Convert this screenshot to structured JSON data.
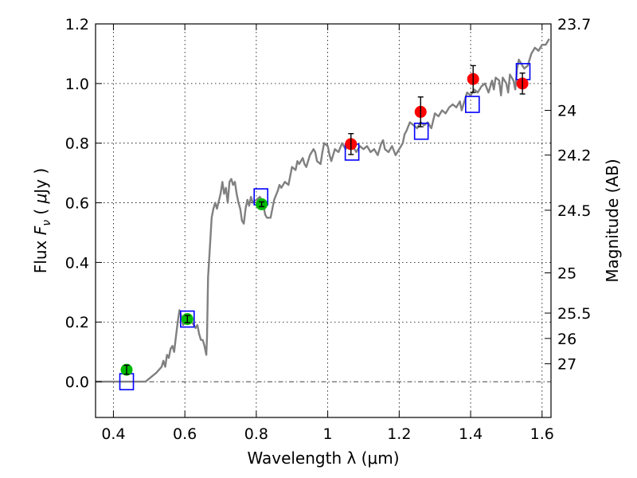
{
  "chart_data": {
    "type": "scatter",
    "xlabel": "Wavelength  λ (μm)",
    "ylabel": "Flux  F_ν  ( μJy )",
    "ylabel_right": "Magnitude (AB)",
    "xlim": [
      0.35,
      1.625
    ],
    "ylim": [
      -0.12,
      1.2
    ],
    "grid": true,
    "x_ticks": [
      0.4,
      0.6,
      0.8,
      1.0,
      1.2,
      1.4,
      1.6
    ],
    "x_tick_labels": [
      "0.4",
      "0.6",
      "0.8",
      "1",
      "1.2",
      "1.4",
      "1.6"
    ],
    "y_ticks": [
      0.0,
      0.2,
      0.4,
      0.6,
      0.8,
      1.0,
      1.2
    ],
    "y_tick_labels": [
      "0.0",
      "0.2",
      "0.4",
      "0.6",
      "0.8",
      "1.0",
      "1.2"
    ],
    "right_ticks": [
      {
        "label": "23.7",
        "flux": 1.2
      },
      {
        "label": "24",
        "flux": 0.91
      },
      {
        "label": "24.2",
        "flux": 0.76
      },
      {
        "label": "24.5",
        "flux": 0.575
      },
      {
        "label": "25",
        "flux": 0.365
      },
      {
        "label": "25.5",
        "flux": 0.23
      },
      {
        "label": "26",
        "flux": 0.145
      },
      {
        "label": "27",
        "flux": 0.06
      }
    ],
    "series": [
      {
        "kind": "line",
        "color": "#808080",
        "points": [
          [
            0.35,
            0.0
          ],
          [
            0.49,
            0.0
          ],
          [
            0.5,
            0.01
          ],
          [
            0.52,
            0.03
          ],
          [
            0.535,
            0.05
          ],
          [
            0.54,
            0.07
          ],
          [
            0.545,
            0.05
          ],
          [
            0.55,
            0.09
          ],
          [
            0.555,
            0.08
          ],
          [
            0.56,
            0.11
          ],
          [
            0.565,
            0.12
          ],
          [
            0.57,
            0.1
          ],
          [
            0.575,
            0.15
          ],
          [
            0.58,
            0.2
          ],
          [
            0.585,
            0.24
          ],
          [
            0.59,
            0.22
          ],
          [
            0.595,
            0.19
          ],
          [
            0.6,
            0.2
          ],
          [
            0.61,
            0.22
          ],
          [
            0.62,
            0.2
          ],
          [
            0.63,
            0.18
          ],
          [
            0.635,
            0.19
          ],
          [
            0.64,
            0.16
          ],
          [
            0.645,
            0.14
          ],
          [
            0.65,
            0.14
          ],
          [
            0.655,
            0.12
          ],
          [
            0.66,
            0.09
          ],
          [
            0.662,
            0.15
          ],
          [
            0.665,
            0.35
          ],
          [
            0.67,
            0.45
          ],
          [
            0.675,
            0.55
          ],
          [
            0.68,
            0.58
          ],
          [
            0.685,
            0.6
          ],
          [
            0.69,
            0.58
          ],
          [
            0.7,
            0.63
          ],
          [
            0.705,
            0.67
          ],
          [
            0.71,
            0.63
          ],
          [
            0.715,
            0.65
          ],
          [
            0.72,
            0.6
          ],
          [
            0.725,
            0.67
          ],
          [
            0.73,
            0.68
          ],
          [
            0.735,
            0.66
          ],
          [
            0.74,
            0.67
          ],
          [
            0.745,
            0.63
          ],
          [
            0.75,
            0.6
          ],
          [
            0.755,
            0.58
          ],
          [
            0.76,
            0.54
          ],
          [
            0.765,
            0.53
          ],
          [
            0.77,
            0.58
          ],
          [
            0.775,
            0.61
          ],
          [
            0.78,
            0.59
          ],
          [
            0.785,
            0.62
          ],
          [
            0.79,
            0.6
          ],
          [
            0.8,
            0.61
          ],
          [
            0.81,
            0.62
          ],
          [
            0.815,
            0.61
          ],
          [
            0.82,
            0.59
          ],
          [
            0.825,
            0.56
          ],
          [
            0.83,
            0.55
          ],
          [
            0.84,
            0.55
          ],
          [
            0.85,
            0.61
          ],
          [
            0.86,
            0.64
          ],
          [
            0.865,
            0.66
          ],
          [
            0.87,
            0.65
          ],
          [
            0.88,
            0.67
          ],
          [
            0.89,
            0.66
          ],
          [
            0.895,
            0.69
          ],
          [
            0.9,
            0.72
          ],
          [
            0.91,
            0.71
          ],
          [
            0.915,
            0.74
          ],
          [
            0.92,
            0.73
          ],
          [
            0.93,
            0.75
          ],
          [
            0.935,
            0.73
          ],
          [
            0.94,
            0.72
          ],
          [
            0.95,
            0.76
          ],
          [
            0.96,
            0.78
          ],
          [
            0.965,
            0.77
          ],
          [
            0.97,
            0.74
          ],
          [
            0.98,
            0.73
          ],
          [
            0.985,
            0.77
          ],
          [
            0.99,
            0.8
          ],
          [
            1.0,
            0.79
          ],
          [
            1.005,
            0.76
          ],
          [
            1.01,
            0.74
          ],
          [
            1.02,
            0.78
          ],
          [
            1.03,
            0.77
          ],
          [
            1.04,
            0.8
          ],
          [
            1.05,
            0.78
          ],
          [
            1.06,
            0.8
          ],
          [
            1.07,
            0.79
          ],
          [
            1.08,
            0.77
          ],
          [
            1.09,
            0.79
          ],
          [
            1.1,
            0.78
          ],
          [
            1.11,
            0.79
          ],
          [
            1.12,
            0.77
          ],
          [
            1.13,
            0.78
          ],
          [
            1.14,
            0.76
          ],
          [
            1.15,
            0.8
          ],
          [
            1.155,
            0.81
          ],
          [
            1.16,
            0.78
          ],
          [
            1.17,
            0.77
          ],
          [
            1.18,
            0.79
          ],
          [
            1.19,
            0.76
          ],
          [
            1.2,
            0.78
          ],
          [
            1.21,
            0.8
          ],
          [
            1.215,
            0.83
          ],
          [
            1.22,
            0.84
          ],
          [
            1.23,
            0.87
          ],
          [
            1.24,
            0.86
          ],
          [
            1.25,
            0.85
          ],
          [
            1.26,
            0.87
          ],
          [
            1.27,
            0.86
          ],
          [
            1.28,
            0.87
          ],
          [
            1.29,
            0.85
          ],
          [
            1.3,
            0.9
          ],
          [
            1.31,
            0.89
          ],
          [
            1.32,
            0.91
          ],
          [
            1.33,
            0.9
          ],
          [
            1.34,
            0.92
          ],
          [
            1.35,
            0.93
          ],
          [
            1.36,
            0.92
          ],
          [
            1.37,
            0.94
          ],
          [
            1.375,
            0.91
          ],
          [
            1.38,
            0.93
          ],
          [
            1.39,
            0.97
          ],
          [
            1.4,
            0.96
          ],
          [
            1.41,
            0.98
          ],
          [
            1.42,
            0.97
          ],
          [
            1.43,
            0.99
          ],
          [
            1.44,
            1.0
          ],
          [
            1.45,
            0.97
          ],
          [
            1.46,
            1.01
          ],
          [
            1.465,
            0.98
          ],
          [
            1.47,
            1.02
          ],
          [
            1.48,
            1.01
          ],
          [
            1.485,
            0.96
          ],
          [
            1.49,
            1.02
          ],
          [
            1.5,
            1.0
          ],
          [
            1.505,
            0.97
          ],
          [
            1.51,
            1.03
          ],
          [
            1.52,
            1.01
          ],
          [
            1.525,
            0.98
          ],
          [
            1.53,
            1.05
          ],
          [
            1.535,
            1.08
          ],
          [
            1.54,
            1.07
          ],
          [
            1.55,
            1.05
          ],
          [
            1.56,
            1.06
          ],
          [
            1.57,
            1.1
          ],
          [
            1.58,
            1.12
          ],
          [
            1.59,
            1.11
          ],
          [
            1.6,
            1.13
          ],
          [
            1.61,
            1.13
          ],
          [
            1.62,
            1.15
          ]
        ]
      },
      {
        "kind": "open-squares",
        "color": "#0000ff",
        "points": [
          [
            0.437,
            0.0
          ],
          [
            0.607,
            0.21
          ],
          [
            0.813,
            0.62
          ],
          [
            1.068,
            0.77
          ],
          [
            1.262,
            0.84
          ],
          [
            1.405,
            0.93
          ],
          [
            1.547,
            1.04
          ]
        ]
      },
      {
        "kind": "points-errorbars",
        "color": "#00bb00",
        "points": [
          {
            "x": 0.437,
            "y": 0.04,
            "err": 0.015
          },
          {
            "x": 0.607,
            "y": 0.21,
            "err": 0.012
          },
          {
            "x": 0.815,
            "y": 0.595,
            "err": 0.008
          }
        ]
      },
      {
        "kind": "points-errorbars",
        "color": "#ff0000",
        "points": [
          {
            "x": 1.065,
            "y": 0.797,
            "err": 0.035
          },
          {
            "x": 1.26,
            "y": 0.905,
            "err": 0.05
          },
          {
            "x": 1.407,
            "y": 1.015,
            "err": 0.045
          },
          {
            "x": 1.545,
            "y": 1.0,
            "err": 0.035
          }
        ]
      }
    ]
  }
}
